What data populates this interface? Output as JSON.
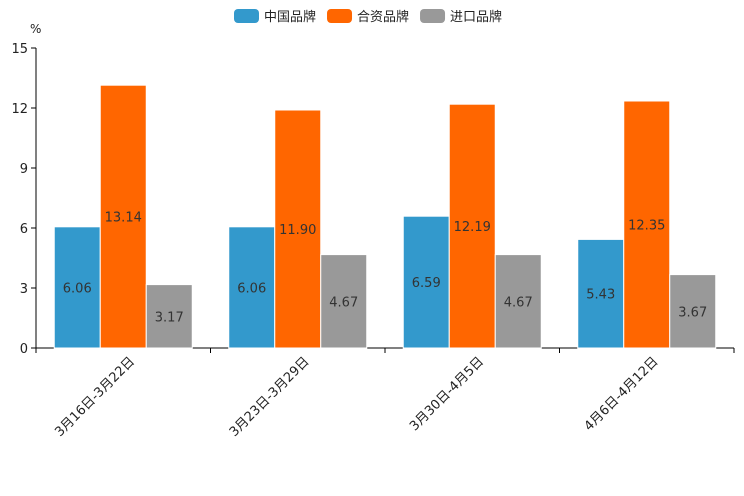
{
  "chart_data": {
    "type": "bar",
    "ylabel": "%",
    "ylim": [
      0,
      15
    ],
    "yticks": [
      0,
      3,
      6,
      9,
      12,
      15
    ],
    "grid": false,
    "legend_position": "top-center",
    "categories": [
      "3月16日-3月22日",
      "3月23日-3月29日",
      "3月30日-4月5日",
      "4月6日-4月12日"
    ],
    "series": [
      {
        "name": "中国品牌",
        "color": "#3399cc",
        "values": [
          6.06,
          6.06,
          6.59,
          5.43
        ]
      },
      {
        "name": "合资品牌",
        "color": "#ff6600",
        "values": [
          13.14,
          11.9,
          12.19,
          12.35
        ]
      },
      {
        "name": "进口品牌",
        "color": "#999999",
        "values": [
          3.17,
          4.67,
          4.67,
          3.67
        ]
      }
    ]
  }
}
